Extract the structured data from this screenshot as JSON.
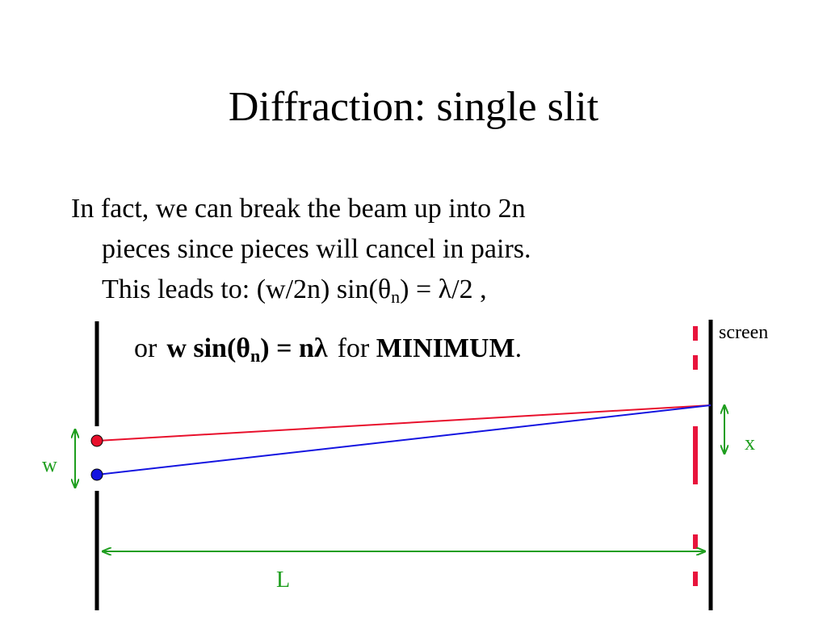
{
  "slide": {
    "title": "Diffraction:  single slit",
    "paragraph": {
      "line1": "In fact, we can break the beam up into 2n",
      "line2": "pieces since pieces will cancel in pairs.",
      "line3_prefix": "This leads to: (w/2n) sin(θ",
      "line3_sub": "n",
      "line3_suffix": ") = λ/2 ,"
    },
    "formula": {
      "or": "or",
      "eq_prefix": "w sin(θ",
      "eq_sub": "n",
      "eq_suffix": ") = nλ",
      "for": "for",
      "minimum": "MINIMUM",
      "period": "."
    }
  },
  "diagram": {
    "labels": {
      "screen": "screen",
      "w": "w",
      "x": "x",
      "L": "L"
    },
    "colors": {
      "red_ray": "#e8102c",
      "blue_ray": "#1414e0",
      "dimension": "#1e9e1e",
      "barrier": "#000000",
      "intensity_dashes": "#e8143c"
    }
  }
}
